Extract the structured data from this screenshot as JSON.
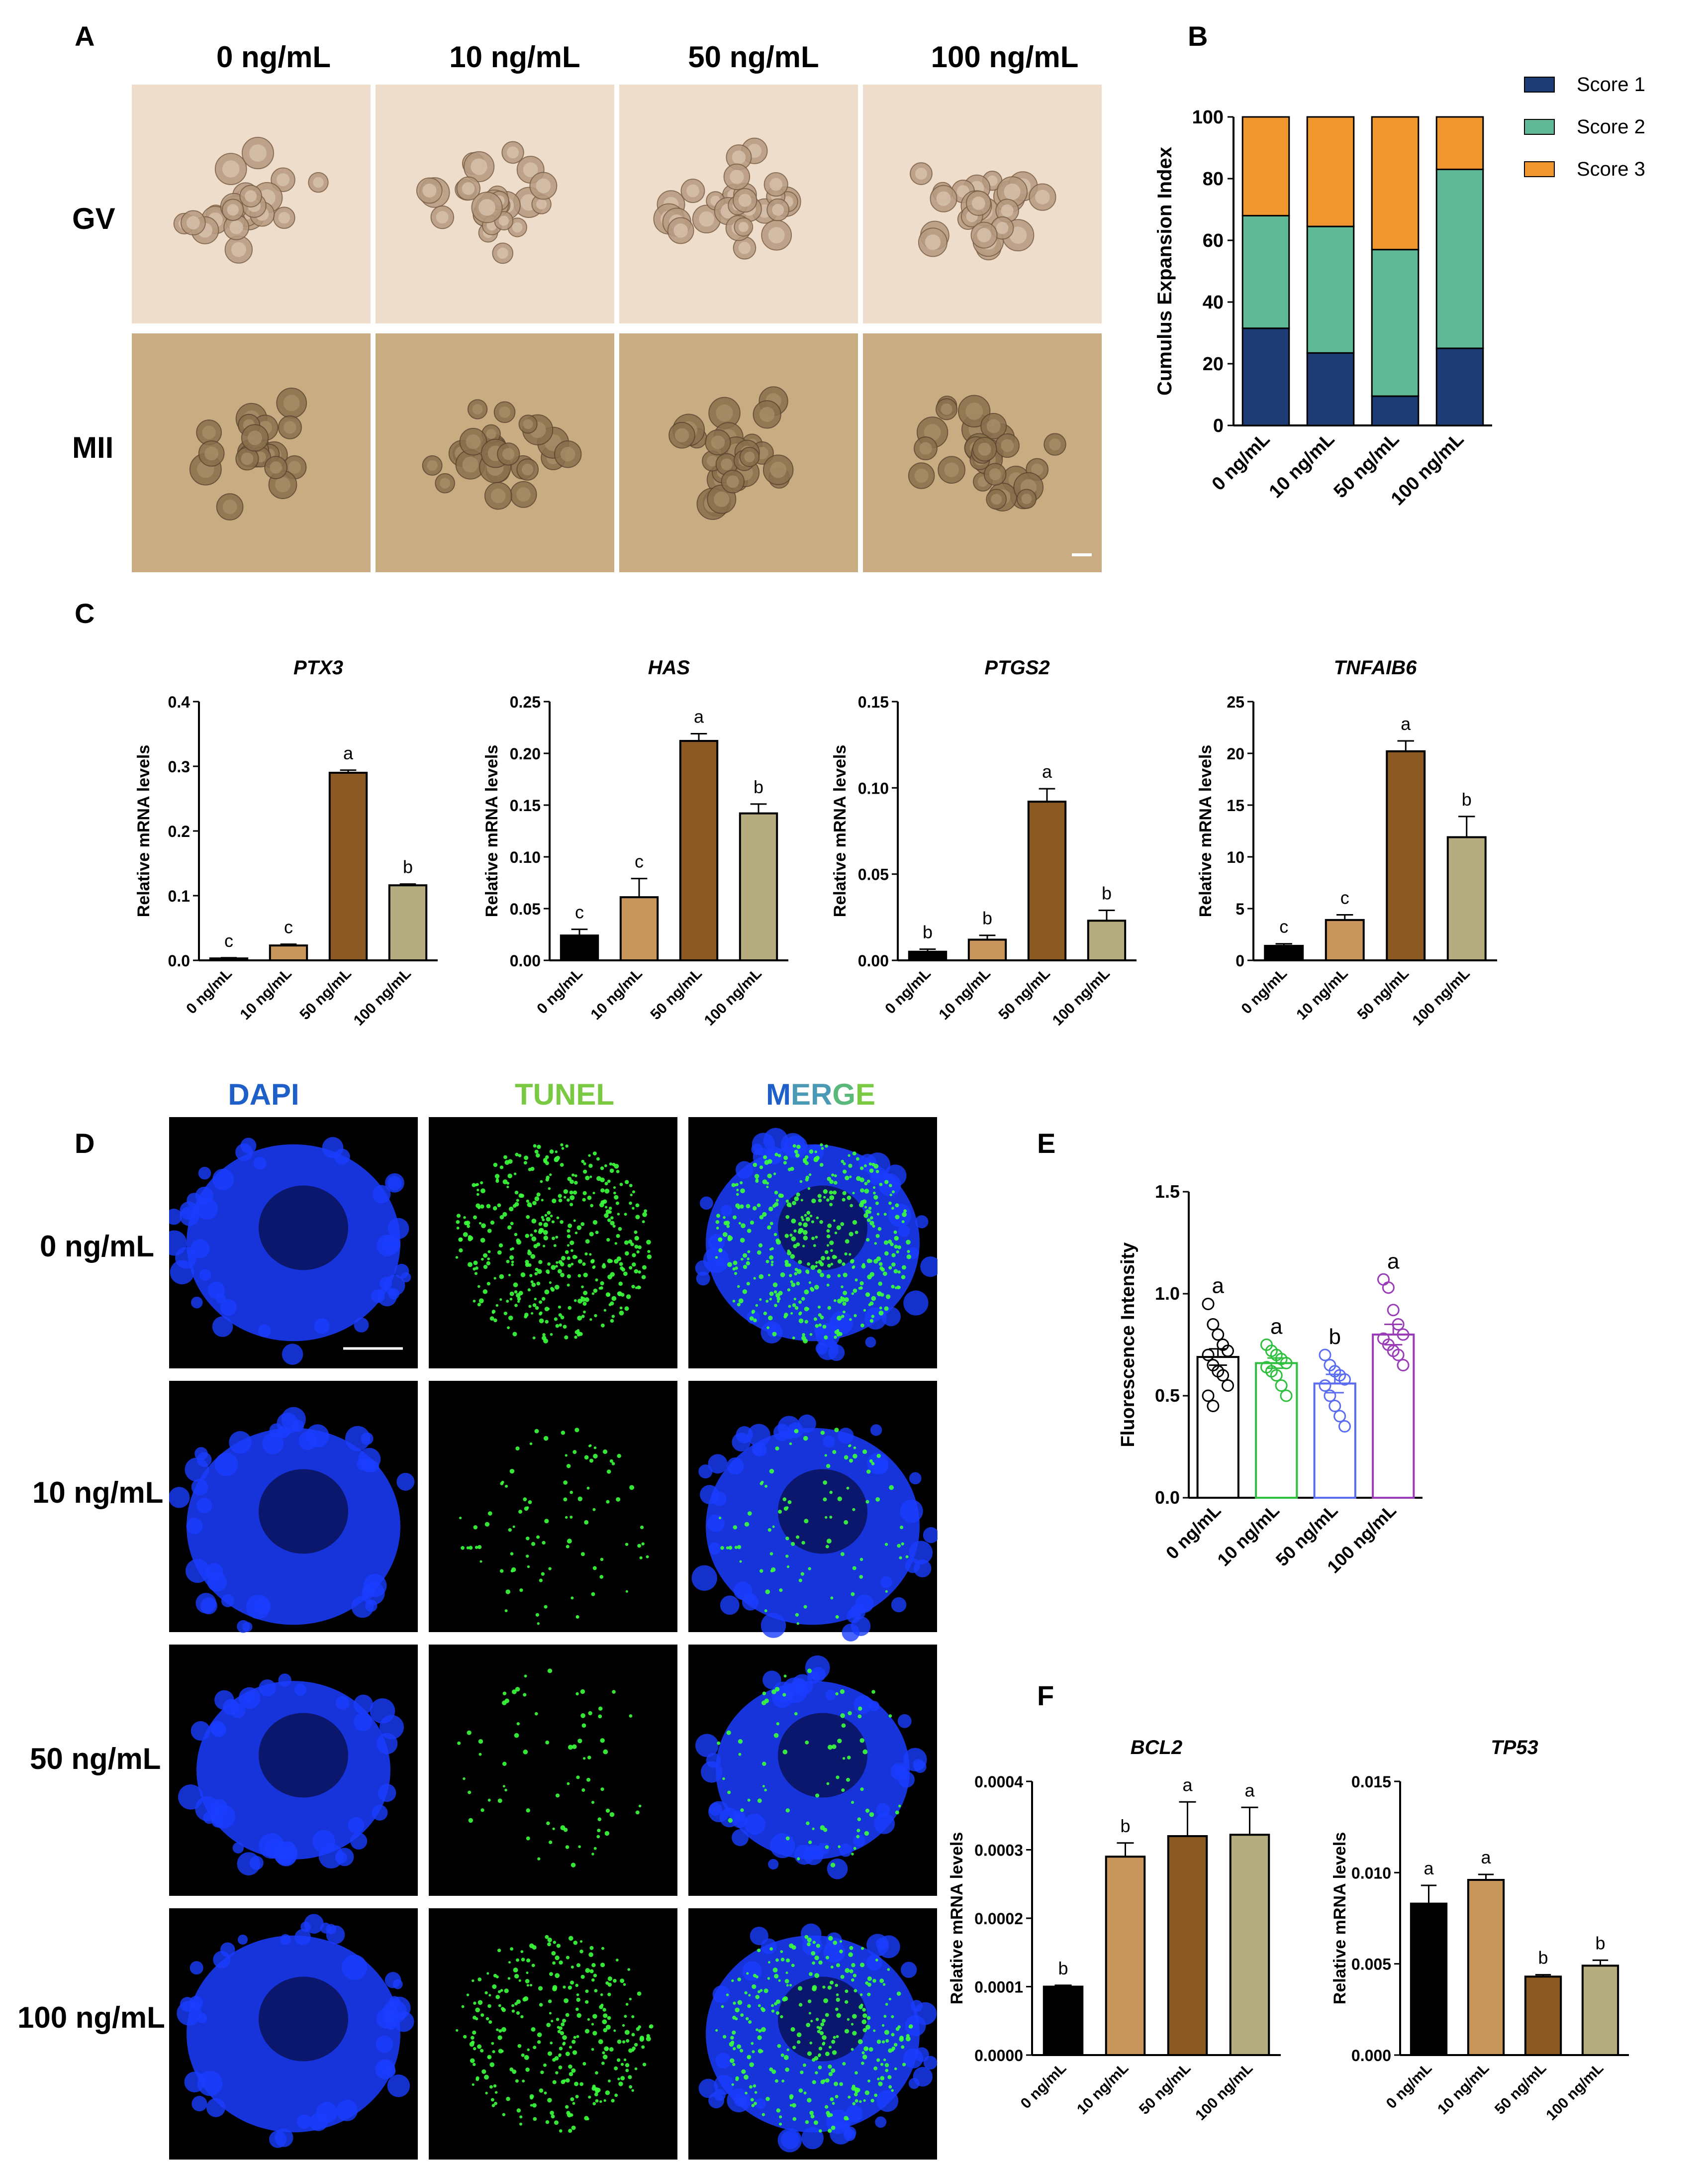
{
  "panels": {
    "A": "A",
    "B": "B",
    "C": "C",
    "D": "D",
    "E": "E",
    "F": "F"
  },
  "panel_a": {
    "columns": [
      "0 ng/mL",
      "10 ng/mL",
      "50 ng/mL",
      "100 ng/mL"
    ],
    "rows": [
      "GV",
      "MII"
    ]
  },
  "panel_d": {
    "columns": [
      "DAPI",
      "TUNEL",
      "MERGE"
    ],
    "merge_parts": [
      "M",
      "E",
      "R",
      "G",
      "E"
    ],
    "rows": [
      "0 ng/mL",
      "10 ng/mL",
      "50 ng/mL",
      "100 ng/mL"
    ]
  },
  "colors": {
    "score1": "#1f3b73",
    "score2": "#5fb896",
    "score3": "#f0962e",
    "bar0": "#000000",
    "bar10": "#c8955a",
    "bar50": "#8a5a22",
    "bar100": "#b5ad80",
    "dapi": "#1a3dff",
    "tunel": "#3cff3c",
    "dapi_label": "#1f5fc8",
    "tunel_label": "#7ac943",
    "gv_bg": "#eeddca",
    "mii_bg": "#c9ac82"
  },
  "chart_data": [
    {
      "id": "B",
      "type": "bar",
      "stacked": true,
      "categories": [
        "0 ng/mL",
        "10 ng/mL",
        "50 ng/mL",
        "100 ng/mL"
      ],
      "series": [
        {
          "name": "Score 1",
          "values": [
            31.5,
            23.5,
            9.5,
            25
          ]
        },
        {
          "name": "Score 2",
          "values": [
            36.5,
            41,
            47.5,
            58
          ]
        },
        {
          "name": "Score 3",
          "values": [
            32,
            35.5,
            43,
            17
          ]
        }
      ],
      "ylabel": "Cumulus Expansion Index",
      "ylim": [
        0,
        100
      ],
      "yticks": [
        "0",
        "20",
        "40",
        "60",
        "80",
        "100"
      ],
      "legend": "right"
    },
    {
      "id": "C1",
      "type": "bar",
      "title": "PTX3",
      "ylabel": "Relative mRNA levels",
      "categories": [
        "0 ng/mL",
        "10 ng/mL",
        "50 ng/mL",
        "100 ng/mL"
      ],
      "values": [
        0.003,
        0.023,
        0.29,
        0.116
      ],
      "errors": [
        0.001,
        0.002,
        0.004,
        0.002
      ],
      "letters": [
        "c",
        "c",
        "a",
        "b"
      ],
      "ylim": [
        0,
        0.4
      ],
      "yticks": [
        "0.0",
        "0.1",
        "0.2",
        "0.3",
        "0.4"
      ]
    },
    {
      "id": "C2",
      "type": "bar",
      "title": "HAS",
      "ylabel": "Relative mRNA levels",
      "categories": [
        "0 ng/mL",
        "10 ng/mL",
        "50 ng/mL",
        "100 ng/mL"
      ],
      "values": [
        0.024,
        0.061,
        0.212,
        0.142
      ],
      "errors": [
        0.006,
        0.018,
        0.007,
        0.009
      ],
      "letters": [
        "c",
        "c",
        "a",
        "b"
      ],
      "ylim": [
        0,
        0.25
      ],
      "yticks": [
        "0.00",
        "0.05",
        "0.10",
        "0.15",
        "0.20",
        "0.25"
      ]
    },
    {
      "id": "C3",
      "type": "bar",
      "title": "PTGS2",
      "ylabel": "Relative mRNA levels",
      "categories": [
        "0 ng/mL",
        "10 ng/mL",
        "50 ng/mL",
        "100 ng/mL"
      ],
      "values": [
        0.005,
        0.012,
        0.092,
        0.023
      ],
      "errors": [
        0.0015,
        0.0025,
        0.0075,
        0.006
      ],
      "letters": [
        "b",
        "b",
        "a",
        "b"
      ],
      "ylim": [
        0,
        0.15
      ],
      "yticks": [
        "0.00",
        "0.05",
        "0.10",
        "0.15"
      ]
    },
    {
      "id": "C4",
      "type": "bar",
      "title": "TNFAIB6",
      "ylabel": "Relative mRNA levels",
      "categories": [
        "0 ng/mL",
        "10 ng/mL",
        "50 ng/mL",
        "100 ng/mL"
      ],
      "values": [
        1.4,
        3.9,
        20.2,
        11.9
      ],
      "errors": [
        0.2,
        0.5,
        1.0,
        2.0
      ],
      "letters": [
        "c",
        "c",
        "a",
        "b"
      ],
      "ylim": [
        0,
        25
      ],
      "yticks": [
        "0",
        "5",
        "10",
        "15",
        "20",
        "25"
      ]
    },
    {
      "id": "E",
      "type": "bar",
      "ylabel": "Fluorescence Intensity",
      "categories": [
        "0 ng/mL",
        "10 ng/mL",
        "50 ng/mL",
        "100 ng/mL"
      ],
      "values": [
        0.69,
        0.66,
        0.56,
        0.8
      ],
      "errors": [
        0.04,
        0.025,
        0.045,
        0.05
      ],
      "letters": [
        "a",
        "a",
        "b",
        "a"
      ],
      "points": [
        [
          0.95,
          0.85,
          0.8,
          0.75,
          0.72,
          0.7,
          0.65,
          0.62,
          0.6,
          0.55,
          0.5,
          0.45
        ],
        [
          0.75,
          0.72,
          0.7,
          0.68,
          0.66,
          0.64,
          0.62,
          0.6,
          0.55,
          0.5
        ],
        [
          0.7,
          0.65,
          0.62,
          0.6,
          0.58,
          0.55,
          0.5,
          0.45,
          0.4,
          0.35
        ],
        [
          1.07,
          1.03,
          0.92,
          0.85,
          0.8,
          0.78,
          0.75,
          0.72,
          0.7,
          0.65
        ]
      ],
      "ylim": [
        0,
        1.5
      ],
      "yticks": [
        "0.0",
        "0.5",
        "1.0",
        "1.5"
      ]
    },
    {
      "id": "F1",
      "type": "bar",
      "title": "BCL2",
      "ylabel": "Relative mRNA levels",
      "categories": [
        "0 ng/mL",
        "10 ng/mL",
        "50 ng/mL",
        "100 ng/mL"
      ],
      "values": [
        0.0001,
        0.00029,
        0.00032,
        0.000322
      ],
      "errors": [
        2e-06,
        2e-05,
        5e-05,
        4e-05
      ],
      "letters": [
        "b",
        "b",
        "a",
        "a"
      ],
      "ylim": [
        0,
        0.0004
      ],
      "yticks": [
        "0.0000",
        "0.0001",
        "0.0002",
        "0.0003",
        "0.0004"
      ]
    },
    {
      "id": "F2",
      "type": "bar",
      "title": "TP53",
      "ylabel": "Relative mRNA levels",
      "categories": [
        "0 ng/mL",
        "10 ng/mL",
        "50 ng/mL",
        "100 ng/mL"
      ],
      "values": [
        0.0083,
        0.0096,
        0.0043,
        0.0049
      ],
      "errors": [
        0.001,
        0.0003,
        0.0001,
        0.0003
      ],
      "letters": [
        "a",
        "a",
        "b",
        "b"
      ],
      "ylim": [
        0,
        0.015
      ],
      "yticks": [
        "0.000",
        "0.005",
        "0.010",
        "0.015"
      ]
    }
  ]
}
